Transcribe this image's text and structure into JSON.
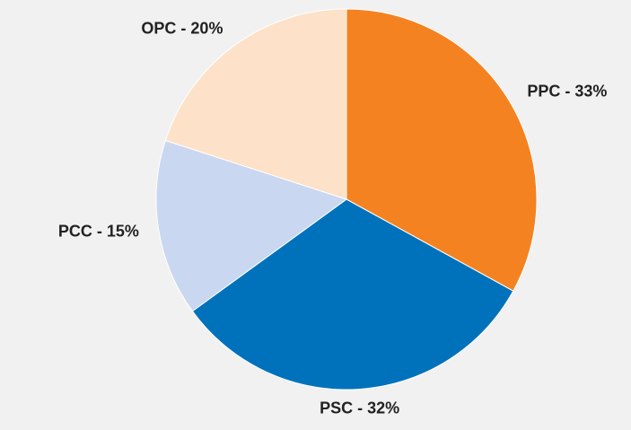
{
  "chart_data": {
    "type": "pie",
    "values": [
      33,
      32,
      15,
      20
    ],
    "value_labels": [
      "PPC - 33%",
      "PSC - 32%",
      "PCC - 15%",
      "OPC - 20%"
    ],
    "colors": [
      "#f58220",
      "#0072bc",
      "#c9d7f0",
      "#fde1c8"
    ]
  }
}
